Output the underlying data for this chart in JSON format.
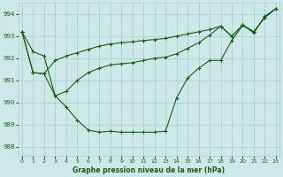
{
  "background_color": "#cce8e8",
  "grid_color": "#aacccc",
  "line_color": "#1a5c1a",
  "xlabel": "Graphe pression niveau de la mer (hPa)",
  "ylim": [
    987.6,
    994.5
  ],
  "yticks": [
    988,
    989,
    990,
    991,
    992,
    993,
    994
  ],
  "xticks": [
    0,
    1,
    2,
    3,
    4,
    5,
    6,
    7,
    8,
    9,
    10,
    11,
    12,
    13,
    14,
    15,
    16,
    17,
    18,
    19,
    20,
    21,
    22,
    23
  ],
  "series": [
    [
      993.2,
      992.3,
      992.1,
      990.3,
      989.8,
      989.2,
      988.75,
      988.65,
      988.7,
      988.65,
      988.65,
      988.65,
      988.65,
      988.7,
      990.2,
      991.1,
      991.55,
      991.9,
      991.9,
      992.8,
      993.5,
      993.15,
      993.9,
      994.25
    ],
    [
      993.2,
      991.35,
      991.3,
      991.9,
      992.1,
      992.25,
      992.4,
      992.55,
      992.65,
      992.7,
      992.75,
      992.8,
      992.85,
      992.9,
      993.0,
      993.1,
      993.2,
      993.3,
      993.45,
      993.0,
      993.5,
      993.2,
      993.85,
      994.25
    ],
    [
      993.2,
      991.35,
      991.3,
      990.3,
      990.5,
      991.0,
      991.35,
      991.55,
      991.7,
      991.75,
      991.8,
      991.9,
      992.0,
      992.05,
      992.2,
      992.45,
      992.7,
      993.05,
      993.45,
      993.0,
      993.5,
      993.2,
      993.85,
      994.25
    ]
  ]
}
